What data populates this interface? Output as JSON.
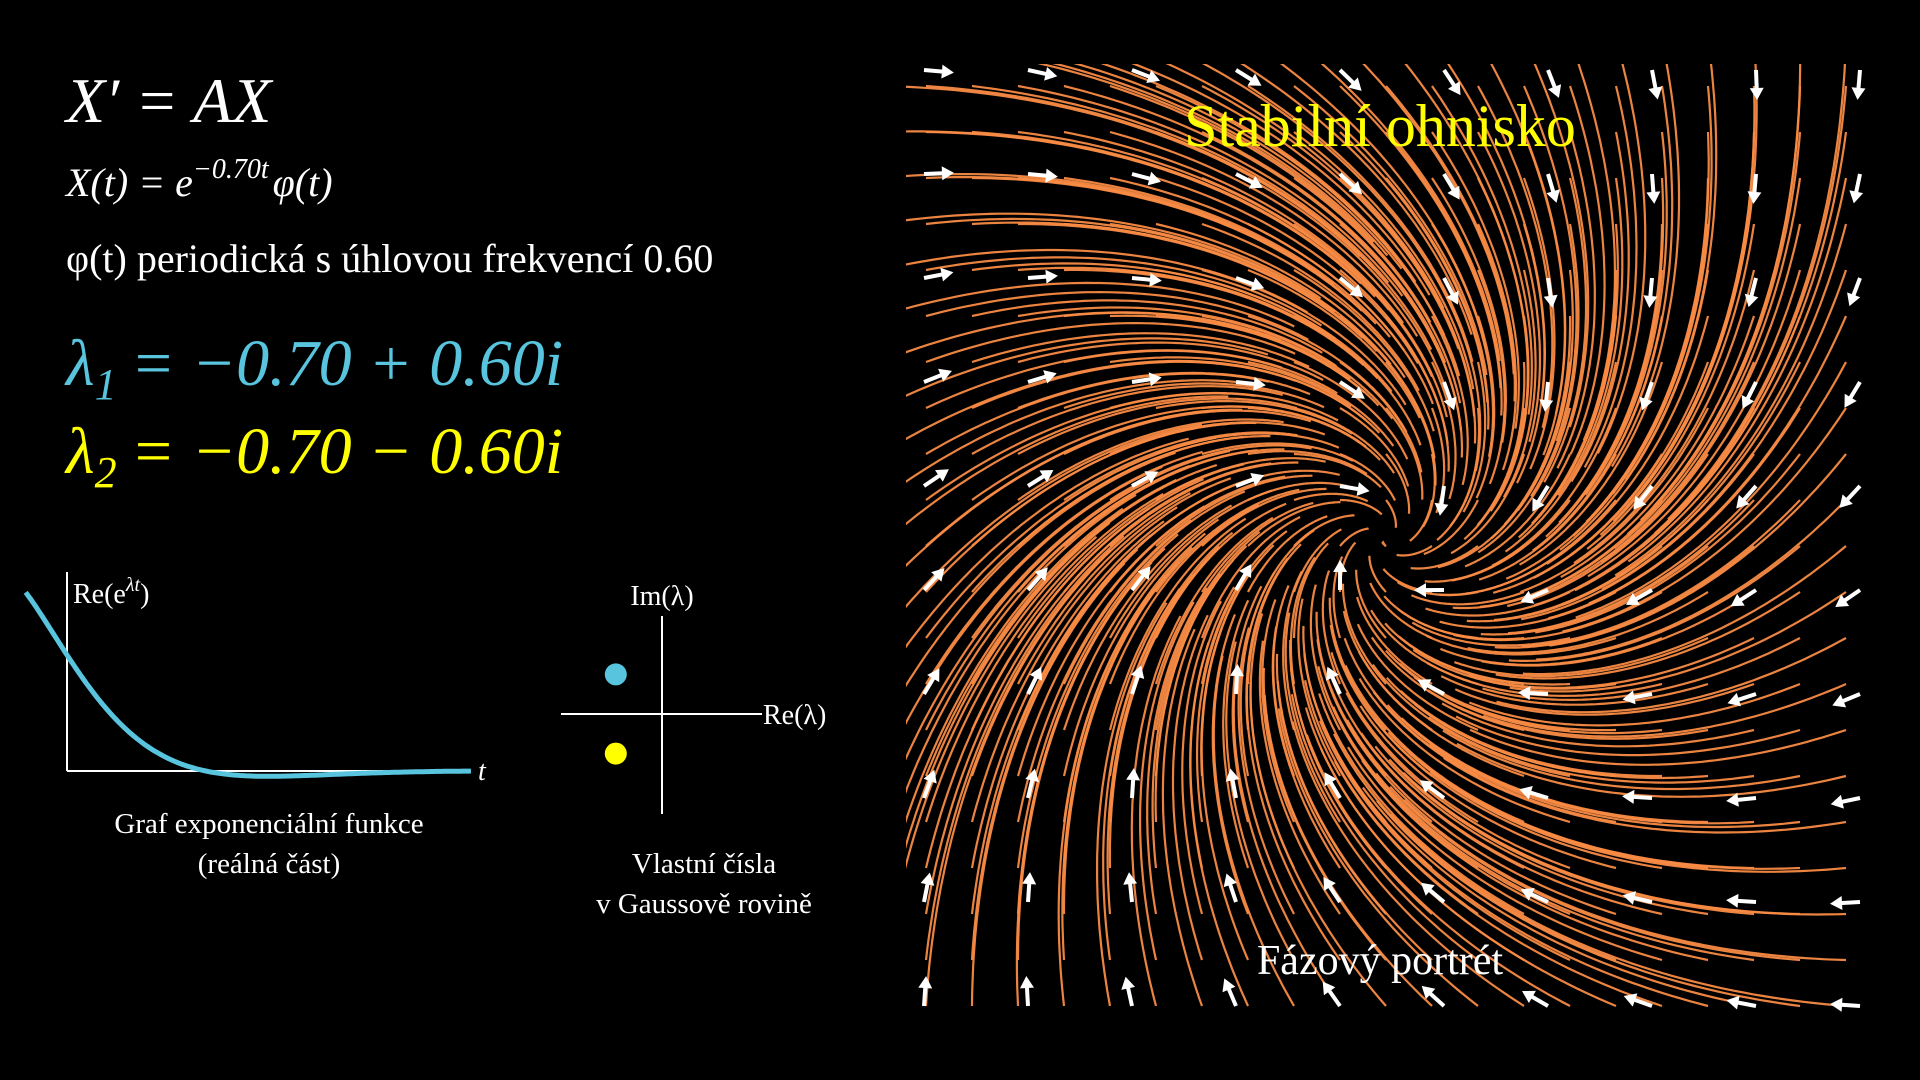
{
  "equations": {
    "system": "X′ = AX",
    "solution": {
      "lhs": "X(t) = e",
      "exponent": "−0.70t",
      "rhs": "φ(t)"
    },
    "periodic": "φ(t) periodická s úhlovou frekvencí 0.60"
  },
  "eigenvalues": [
    {
      "symbol": "λ",
      "index": "1",
      "expression": "= −0.70 + 0.60i",
      "re": -0.7,
      "im": 0.6,
      "color": "#58c4dd"
    },
    {
      "symbol": "λ",
      "index": "2",
      "expression": "= −0.70 − 0.60i",
      "re": -0.7,
      "im": -0.6,
      "color": "#ffff00"
    }
  ],
  "exponential_plot": {
    "y_label": {
      "base": "Re(e",
      "exponent": "λt",
      "close": ")"
    },
    "x_label": "t",
    "caption": [
      "Graf exponenciální funkce",
      "(reálná část)"
    ],
    "color": "#58c4dd"
  },
  "eigenvalue_plot": {
    "y_label": "Im(λ)",
    "x_label": "Re(λ)",
    "caption": [
      "Vlastní čísla",
      "v Gaussově rovině"
    ]
  },
  "phase_portrait": {
    "title": "Stabilní ohnisko",
    "caption": "Fázový portrét",
    "title_color": "#ffff00",
    "stream_color": "#f98b44"
  }
}
